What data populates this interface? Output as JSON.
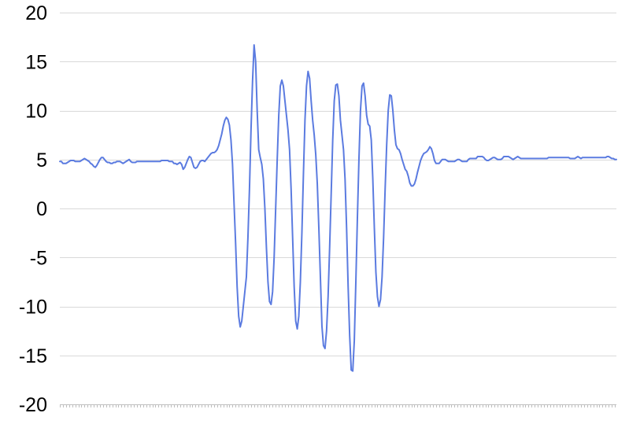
{
  "chart_data": {
    "type": "line",
    "title": "",
    "xlabel": "",
    "ylabel": "",
    "ylim": [
      -20,
      20
    ],
    "yticks": [
      "20",
      "15",
      "10",
      "5",
      "0",
      "-5",
      "-10",
      "-15",
      "-20"
    ],
    "grid": true,
    "legend": "none",
    "colors": {
      "line": "#5b7be0",
      "grid": "#d9d9d9",
      "axis": "#bfbfbf",
      "text": "#000000"
    },
    "series": [
      {
        "values": [
          4.8,
          4.8,
          4.6,
          4.6,
          4.6,
          4.7,
          4.8,
          4.9,
          4.9,
          4.9,
          4.8,
          4.8,
          4.8,
          4.8,
          4.9,
          5.0,
          5.1,
          5.0,
          4.9,
          4.8,
          4.6,
          4.5,
          4.3,
          4.2,
          4.4,
          4.7,
          5.0,
          5.2,
          5.2,
          5.0,
          4.8,
          4.7,
          4.7,
          4.6,
          4.6,
          4.7,
          4.7,
          4.8,
          4.8,
          4.8,
          4.7,
          4.6,
          4.7,
          4.8,
          4.9,
          5.0,
          4.8,
          4.7,
          4.7,
          4.7,
          4.8,
          4.8,
          4.8,
          4.8,
          4.8,
          4.8,
          4.8,
          4.8,
          4.8,
          4.8,
          4.8,
          4.8,
          4.8,
          4.8,
          4.8,
          4.8,
          4.9,
          4.9,
          4.9,
          4.9,
          4.9,
          4.8,
          4.8,
          4.8,
          4.6,
          4.6,
          4.5,
          4.6,
          4.7,
          4.5,
          4.0,
          4.2,
          4.6,
          5.0,
          5.3,
          5.2,
          4.7,
          4.2,
          4.1,
          4.2,
          4.5,
          4.8,
          4.9,
          4.9,
          4.8,
          5.0,
          5.2,
          5.4,
          5.6,
          5.7,
          5.7,
          5.8,
          6.0,
          6.4,
          7.0,
          7.6,
          8.4,
          9.0,
          9.3,
          9.1,
          8.5,
          7.0,
          4.5,
          0.5,
          -3.5,
          -8.0,
          -11.0,
          -12.1,
          -11.5,
          -10.0,
          -8.5,
          -7.0,
          -3.0,
          2.0,
          8.0,
          13.0,
          16.7,
          15.0,
          10.0,
          6.0,
          5.2,
          4.5,
          3.0,
          0.0,
          -4.0,
          -7.5,
          -9.5,
          -9.8,
          -8.5,
          -5.0,
          0.0,
          5.0,
          9.5,
          12.5,
          13.1,
          12.5,
          11.0,
          9.5,
          8.0,
          6.0,
          2.0,
          -3.0,
          -8.0,
          -11.5,
          -12.3,
          -11.0,
          -7.5,
          -2.5,
          3.5,
          9.0,
          12.5,
          14.0,
          13.3,
          11.0,
          9.0,
          7.5,
          5.5,
          2.5,
          -2.0,
          -7.0,
          -12.0,
          -14.0,
          -14.3,
          -12.5,
          -9.0,
          -4.0,
          1.5,
          7.0,
          11.0,
          12.6,
          12.7,
          11.5,
          9.0,
          7.5,
          6.0,
          3.0,
          -2.0,
          -8.0,
          -13.0,
          -16.5,
          -16.6,
          -13.5,
          -7.5,
          -1.0,
          5.0,
          10.0,
          12.5,
          12.8,
          11.5,
          9.5,
          8.6,
          8.4,
          7.0,
          3.0,
          -2.0,
          -6.5,
          -9.0,
          -10.0,
          -9.3,
          -7.0,
          -3.0,
          2.0,
          6.5,
          10.0,
          11.6,
          11.5,
          10.0,
          8.0,
          6.5,
          6.1,
          6.0,
          5.6,
          5.0,
          4.5,
          4.0,
          3.8,
          3.3,
          2.6,
          2.3,
          2.3,
          2.5,
          3.0,
          3.7,
          4.3,
          4.9,
          5.3,
          5.6,
          5.7,
          5.8,
          6.0,
          6.3,
          6.1,
          5.6,
          4.9,
          4.6,
          4.6,
          4.6,
          4.8,
          5.0,
          5.0,
          5.0,
          4.9,
          4.8,
          4.8,
          4.8,
          4.8,
          4.8,
          4.9,
          5.0,
          5.0,
          4.9,
          4.8,
          4.8,
          4.8,
          4.8,
          5.0,
          5.1,
          5.1,
          5.1,
          5.1,
          5.1,
          5.3,
          5.3,
          5.3,
          5.3,
          5.2,
          5.0,
          4.9,
          4.9,
          5.0,
          5.1,
          5.2,
          5.2,
          5.1,
          5.0,
          5.0,
          5.0,
          5.1,
          5.3,
          5.3,
          5.3,
          5.3,
          5.2,
          5.1,
          5.0,
          5.1,
          5.2,
          5.3,
          5.2,
          5.1,
          5.1,
          5.1,
          5.1,
          5.1,
          5.1,
          5.1,
          5.1,
          5.1,
          5.1,
          5.1,
          5.1,
          5.1,
          5.1,
          5.1,
          5.1,
          5.1,
          5.1,
          5.2,
          5.2,
          5.2,
          5.2,
          5.2,
          5.2,
          5.2,
          5.2,
          5.2,
          5.2,
          5.2,
          5.2,
          5.2,
          5.2,
          5.1,
          5.1,
          5.1,
          5.1,
          5.2,
          5.3,
          5.2,
          5.1,
          5.2,
          5.2,
          5.2,
          5.2,
          5.2,
          5.2,
          5.2,
          5.2,
          5.2,
          5.2,
          5.2,
          5.2,
          5.2,
          5.2,
          5.2,
          5.2,
          5.3,
          5.3,
          5.2,
          5.1,
          5.1,
          5.0,
          5.0
        ]
      }
    ]
  }
}
